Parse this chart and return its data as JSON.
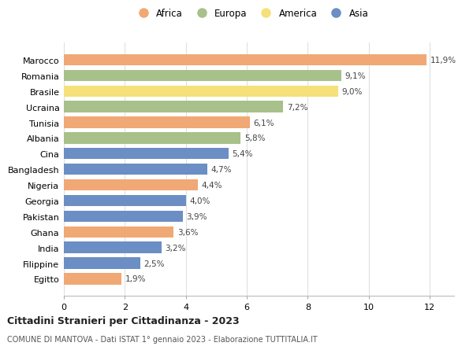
{
  "categories": [
    "Marocco",
    "Romania",
    "Brasile",
    "Ucraina",
    "Tunisia",
    "Albania",
    "Cina",
    "Bangladesh",
    "Nigeria",
    "Georgia",
    "Pakistan",
    "Ghana",
    "India",
    "Filippine",
    "Egitto"
  ],
  "values": [
    11.9,
    9.1,
    9.0,
    7.2,
    6.1,
    5.8,
    5.4,
    4.7,
    4.4,
    4.0,
    3.9,
    3.6,
    3.2,
    2.5,
    1.9
  ],
  "labels": [
    "11,9%",
    "9,1%",
    "9,0%",
    "7,2%",
    "6,1%",
    "5,8%",
    "5,4%",
    "4,7%",
    "4,4%",
    "4,0%",
    "3,9%",
    "3,6%",
    "3,2%",
    "2,5%",
    "1,9%"
  ],
  "continents": [
    "Africa",
    "Europa",
    "America",
    "Europa",
    "Africa",
    "Europa",
    "Asia",
    "Asia",
    "Africa",
    "Asia",
    "Asia",
    "Africa",
    "Asia",
    "Asia",
    "Africa"
  ],
  "colors": {
    "Africa": "#F0A875",
    "Europa": "#A8C08A",
    "America": "#F5E07A",
    "Asia": "#6B8EC4"
  },
  "legend_order": [
    "Africa",
    "Europa",
    "America",
    "Asia"
  ],
  "title": "Cittadini Stranieri per Cittadinanza - 2023",
  "subtitle": "COMUNE DI MANTOVA - Dati ISTAT 1° gennaio 2023 - Elaborazione TUTTITALIA.IT",
  "xlim": [
    0,
    12.8
  ],
  "xticks": [
    0,
    2,
    4,
    6,
    8,
    10,
    12
  ],
  "background_color": "#ffffff",
  "bar_height": 0.72
}
